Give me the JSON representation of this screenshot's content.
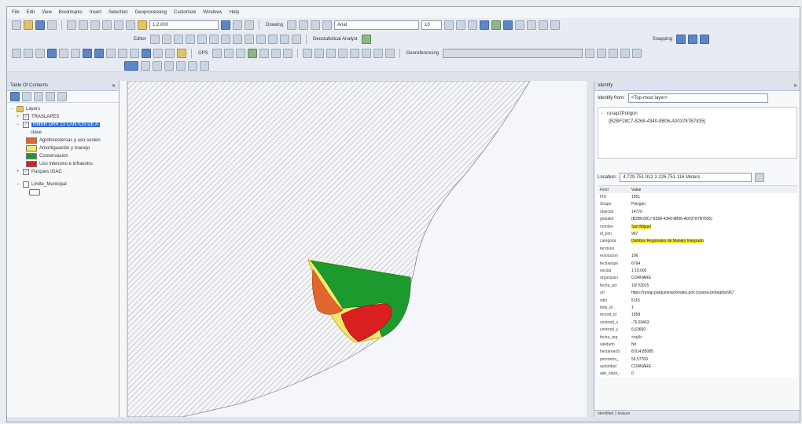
{
  "menu": [
    "File",
    "Edit",
    "View",
    "Bookmarks",
    "Insert",
    "Selection",
    "Geoprocessing",
    "Customize",
    "Windows",
    "Help"
  ],
  "toolbar": {
    "scale": "1:2.000",
    "drawing_label": "Drawing",
    "font_name": "Arial",
    "font_size": "10",
    "editor_label": "Editor",
    "geostat_label": "Geostatistical Analyst",
    "snapping_label": "Snapping",
    "georef_label": "Georeferencing",
    "gps_label": "GPS"
  },
  "toc": {
    "title": "Table Of Contents",
    "layers_label": "Layers",
    "layers": [
      {
        "name": "TRASLAPES",
        "checked": true
      },
      {
        "name": "RMNR DRR 23 CANTOS DE A",
        "checked": true,
        "selected": true
      },
      {
        "name": "Parques IGAC",
        "checked": true
      },
      {
        "name": "Limite_Municipal",
        "checked": false
      }
    ],
    "legend_header": "clase",
    "legend": [
      {
        "label": "Agroforestersas y uso sosten",
        "color": "#e2652c"
      },
      {
        "label": "Amortiguación y manejo",
        "color": "#f2e86a"
      },
      {
        "label": "Conservacion",
        "color": "#1d9a2e"
      },
      {
        "label": "Uso intensivo e infraestru",
        "color": "#d91f1f"
      }
    ]
  },
  "identify": {
    "title": "Identify",
    "from_label": "Identify from:",
    "from_value": "<Top-most layer>",
    "tree_parent": "runap2Poligon",
    "tree_child": "{B2BF28C7-8268-4340-9B06-A003787B7835}",
    "location_label": "Location:",
    "location_value": "4.729.751.912  2.226.751.116 Meters",
    "field_header": "Field",
    "value_header": "Value",
    "attributes": [
      {
        "field": "FID",
        "value": "1051"
      },
      {
        "field": "Shape",
        "value": "Polygon"
      },
      {
        "field": "objectid",
        "value": "14770"
      },
      {
        "field": "globalid",
        "value": "{B2BF28C7-8268-4340-9B06-A003787B7835}"
      },
      {
        "field": "nombre",
        "value": "San Miguel",
        "highlight": true
      },
      {
        "field": "id_pnn",
        "value": "967"
      },
      {
        "field": "categoria",
        "value": "Distritos Regionales de Manejo Integrado",
        "highlight": true
      },
      {
        "field": "territorio",
        "value": ""
      },
      {
        "field": "resolucion",
        "value": "106"
      },
      {
        "field": "fechaexpe",
        "value": "6794"
      },
      {
        "field": "escala",
        "value": "1:10.000"
      },
      {
        "field": "organizaci",
        "value": "CORNARE"
      },
      {
        "field": "fecha_act",
        "value": "10/7/2015"
      },
      {
        "field": "url",
        "value": "https://runap.parquesnacionales.gov.co/area-protegida/967"
      },
      {
        "field": "sitio",
        "value": "5116"
      },
      {
        "field": "tieta_id",
        "value": "1"
      },
      {
        "field": "record_id",
        "value": "1958"
      },
      {
        "field": "centroid_x",
        "value": "-75,03463"
      },
      {
        "field": "centroid_y",
        "value": "6,63650"
      },
      {
        "field": "fecha_reg",
        "value": "<null>"
      },
      {
        "field": "validado",
        "value": "No"
      },
      {
        "field": "hectareasS",
        "value": "8.814,85085"
      },
      {
        "field": "perimetro_",
        "value": "50,57769"
      },
      {
        "field": "autoridad",
        "value": "CORNARE"
      },
      {
        "field": "ade_stare_",
        "value": "0"
      }
    ],
    "status": "Identified 1 feature"
  },
  "map_colors": {
    "conservacion": "#1d9a2e",
    "agroforestal": "#e2652c",
    "uso_intensivo": "#d91f1f",
    "amortiguacion": "#f2e86a",
    "hatch": "#8c8c8c"
  }
}
